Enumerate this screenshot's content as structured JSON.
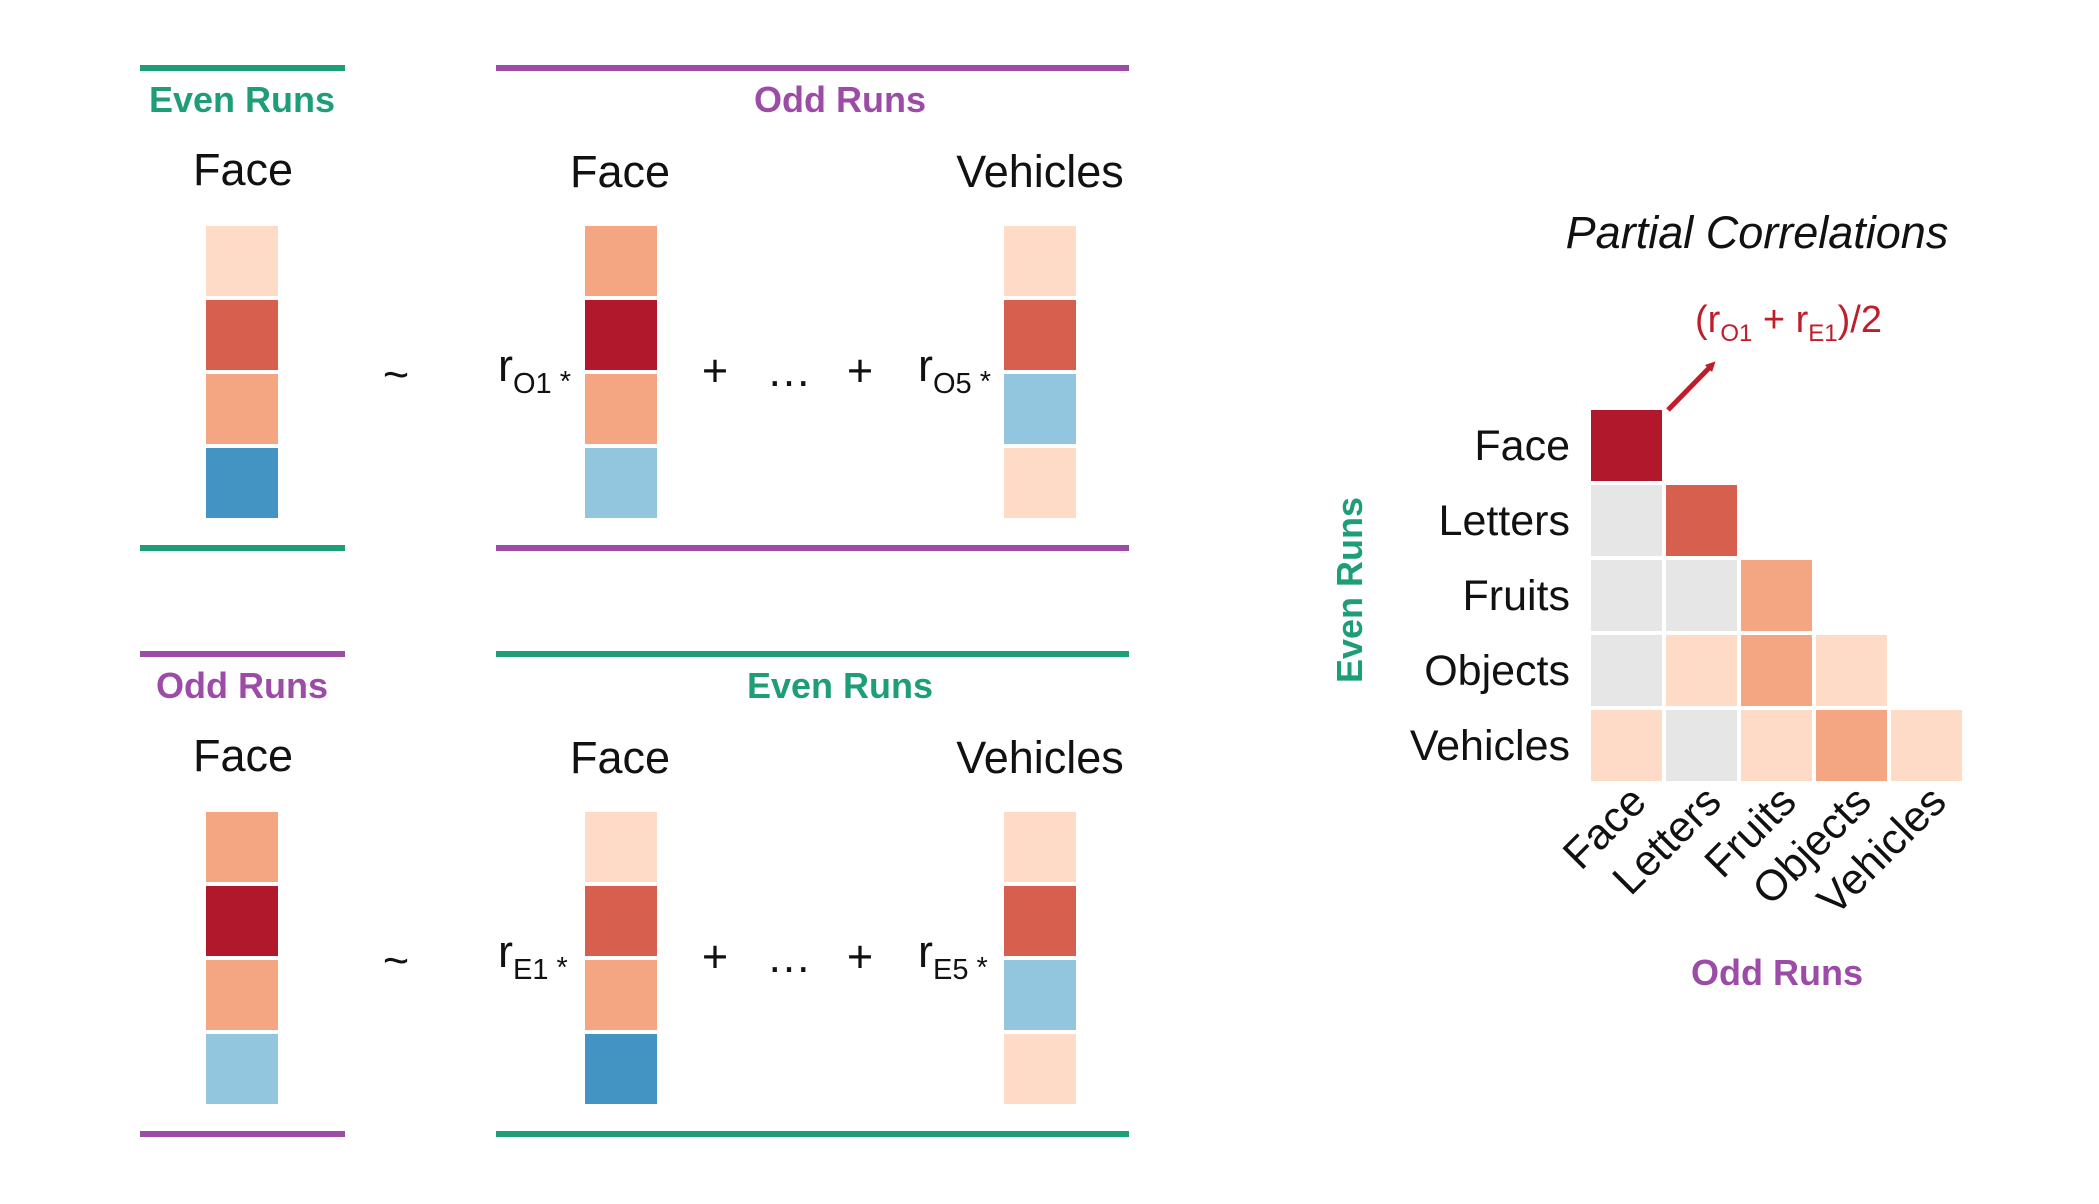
{
  "colors": {
    "even": "#1e9e76",
    "odd": "#9c4ba6",
    "annotation": "#c01d2b",
    "gray_cell": "#e6e6e6",
    "scale": {
      "very_light_red": "#fddbc7",
      "light_red": "#f4a582",
      "mid_red": "#d6604d",
      "dark_red": "#b2182b",
      "light_blue": "#92c5de",
      "mid_blue": "#4393c3"
    }
  },
  "equations": [
    {
      "name": "top",
      "left": {
        "group_label": "Even Runs",
        "group_color": "even",
        "column_title": "Face",
        "cells": [
          "very_light_red",
          "mid_red",
          "light_red",
          "mid_blue"
        ]
      },
      "tilde": "~",
      "right": {
        "group_label": "Odd Runs",
        "group_color": "odd",
        "first": {
          "column_title": "Face",
          "coef": "r",
          "coef_sub": "O1",
          "coef_star": "*",
          "cells": [
            "light_red",
            "dark_red",
            "light_red",
            "light_blue"
          ]
        },
        "plus_1": "+",
        "ellipsis": "…",
        "plus_2": "+",
        "last": {
          "column_title": "Vehicles",
          "coef": "r",
          "coef_sub": "O5",
          "coef_star": "*",
          "cells": [
            "very_light_red",
            "mid_red",
            "light_blue",
            "very_light_red"
          ]
        }
      }
    },
    {
      "name": "bottom",
      "left": {
        "group_label": "Odd Runs",
        "group_color": "odd",
        "column_title": "Face",
        "cells": [
          "light_red",
          "dark_red",
          "light_red",
          "light_blue"
        ]
      },
      "tilde": "~",
      "right": {
        "group_label": "Even Runs",
        "group_color": "even",
        "first": {
          "column_title": "Face",
          "coef": "r",
          "coef_sub": "E1",
          "coef_star": "*",
          "cells": [
            "very_light_red",
            "mid_red",
            "light_red",
            "mid_blue"
          ]
        },
        "plus_1": "+",
        "ellipsis": "…",
        "plus_2": "+",
        "last": {
          "column_title": "Vehicles",
          "coef": "r",
          "coef_sub": "E5",
          "coef_star": "*",
          "cells": [
            "very_light_red",
            "mid_red",
            "light_blue",
            "very_light_red"
          ]
        }
      }
    }
  ],
  "matrix": {
    "title": "Partial Correlations",
    "annotation": {
      "prefix": "(r",
      "sub1": "O1",
      "middle": " + r",
      "sub2": "E1",
      "suffix": ")/2"
    },
    "y_axis_title": "Even Runs",
    "x_axis_title": "Odd Runs",
    "row_labels": [
      "Face",
      "Letters",
      "Fruits",
      "Objects",
      "Vehicles"
    ],
    "col_labels": [
      "Face",
      "Letters",
      "Fruits",
      "Objects",
      "Vehicles"
    ],
    "cells": [
      [
        "dark_red"
      ],
      [
        "gray_cell",
        "mid_red"
      ],
      [
        "gray_cell",
        "gray_cell",
        "light_red"
      ],
      [
        "gray_cell",
        "very_light_red",
        "light_red",
        "very_light_red"
      ],
      [
        "very_light_red",
        "gray_cell",
        "very_light_red",
        "light_red",
        "very_light_red"
      ]
    ]
  }
}
